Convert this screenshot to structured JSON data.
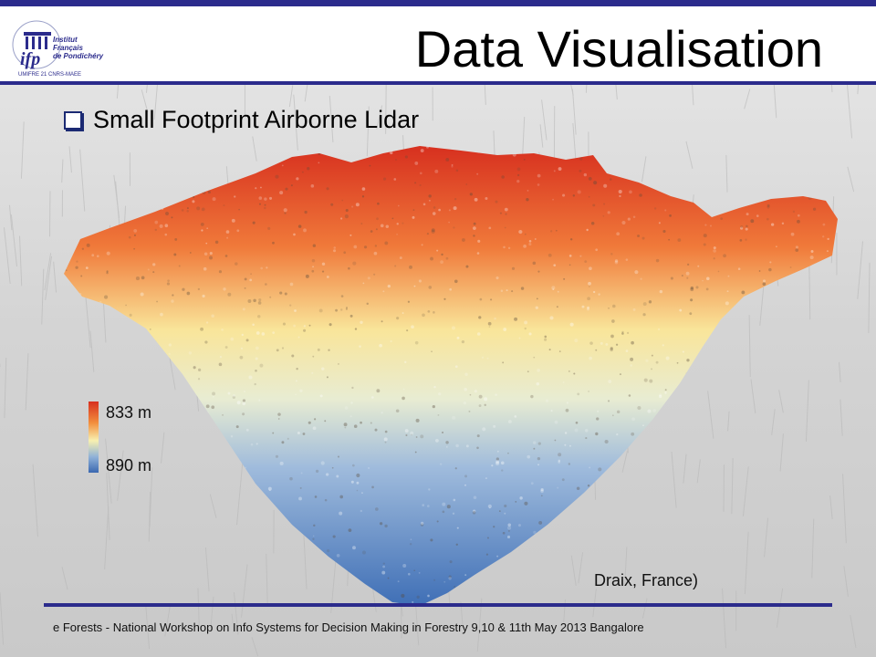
{
  "slide": {
    "title": "Data Visualisation",
    "bullet": "Small Footprint Airborne Lidar",
    "logo": {
      "mark": "ifp",
      "name_line1": "Institut",
      "name_line2": "Français",
      "name_line3": "de Pondichéry",
      "subtitle": "UMIFRE 21 CNRS-MAEE"
    },
    "legend": {
      "top_label": "833 m",
      "bottom_label": "890 m",
      "colors": [
        "#d7301f",
        "#f28e3d",
        "#f8f0b0",
        "#8fb1d8",
        "#3b68b0"
      ]
    },
    "caption": "Draix, France)",
    "footer": "e Forests - National Workshop on Info Systems for Decision Making in Forestry 9,10 & 11th May 2013 Bangalore",
    "accent_color": "#2b2b8c"
  }
}
